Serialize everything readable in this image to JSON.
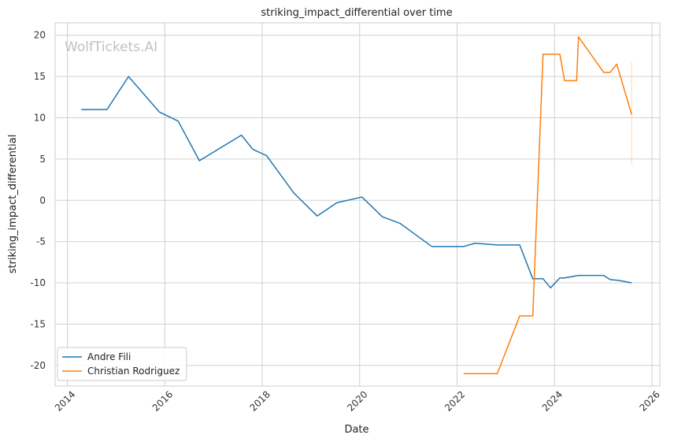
{
  "chart_data": {
    "type": "line",
    "title": "striking_impact_differential over time",
    "xlabel": "Date",
    "ylabel": "striking_impact_differential",
    "watermark": "WolfTickets.AI",
    "x_axis_type": "date",
    "xlim": [
      "2013-10-01",
      "2026-03-01"
    ],
    "ylim": [
      -22.5,
      21.5
    ],
    "x_ticks": [
      "2014",
      "2016",
      "2018",
      "2020",
      "2022",
      "2024",
      "2026"
    ],
    "y_ticks": [
      20,
      15,
      10,
      5,
      0,
      -5,
      -10,
      -15,
      -20
    ],
    "grid": true,
    "legend_position": "lower-left",
    "series": [
      {
        "name": "Andre Fili",
        "color": "#1f77b4",
        "points": [
          [
            "2014-04-15",
            11.0
          ],
          [
            "2014-10-25",
            11.0
          ],
          [
            "2015-04-04",
            15.0
          ],
          [
            "2015-11-21",
            10.7
          ],
          [
            "2016-04-10",
            9.6
          ],
          [
            "2016-09-17",
            4.8
          ],
          [
            "2017-07-29",
            7.9
          ],
          [
            "2017-10-21",
            6.2
          ],
          [
            "2018-02-03",
            5.4
          ],
          [
            "2018-08-25",
            0.9
          ],
          [
            "2019-02-17",
            -1.9
          ],
          [
            "2019-07-13",
            -0.3
          ],
          [
            "2020-01-18",
            0.4
          ],
          [
            "2020-06-20",
            -2.0
          ],
          [
            "2020-10-31",
            -2.8
          ],
          [
            "2021-06-26",
            -5.6
          ],
          [
            "2022-02-19",
            -5.6
          ],
          [
            "2022-05-14",
            -5.2
          ],
          [
            "2022-10-29",
            -5.4
          ],
          [
            "2023-04-15",
            -5.4
          ],
          [
            "2023-07-22",
            -9.5
          ],
          [
            "2023-10-07",
            -9.5
          ],
          [
            "2023-12-02",
            -10.6
          ],
          [
            "2024-02-10",
            -9.4
          ],
          [
            "2024-03-16",
            -9.4
          ],
          [
            "2024-06-29",
            -9.1
          ],
          [
            "2025-01-04",
            -9.1
          ],
          [
            "2025-02-22",
            -9.6
          ],
          [
            "2025-04-26",
            -9.7
          ],
          [
            "2025-08-02",
            -10.0
          ]
        ]
      },
      {
        "name": "Christian Rodriguez",
        "color": "#ff7f0e",
        "points": [
          [
            "2022-02-19",
            -21.0
          ],
          [
            "2022-10-29",
            -21.0
          ],
          [
            "2023-04-15",
            -14.0
          ],
          [
            "2023-07-22",
            -14.0
          ],
          [
            "2023-10-07",
            17.7
          ],
          [
            "2024-02-10",
            17.7
          ],
          [
            "2024-03-16",
            14.5
          ],
          [
            "2024-06-15",
            14.5
          ],
          [
            "2024-06-29",
            19.8
          ],
          [
            "2025-01-04",
            15.5
          ],
          [
            "2025-02-22",
            15.5
          ],
          [
            "2025-04-12",
            16.5
          ],
          [
            "2025-08-02",
            10.4
          ]
        ]
      }
    ],
    "annotations": [
      {
        "type": "faint-vertical-band",
        "x": "2025-08-02",
        "y_from": 16.7,
        "y_to": 4.3,
        "color": "#ff7f0e"
      }
    ]
  }
}
